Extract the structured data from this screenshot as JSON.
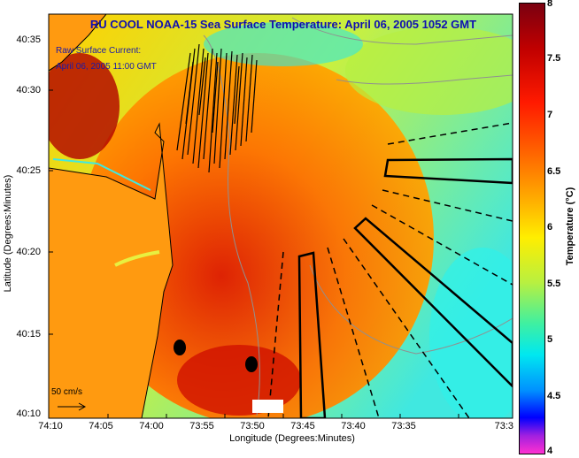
{
  "title": "RU COOL  NOAA-15  Sea Surface Temperature:  April 06, 2005 1052 GMT",
  "current_label": {
    "line1": "Raw Surface Current:",
    "line2": "April 06, 2005 11:00 GMT"
  },
  "scale_label": "50 cm/s",
  "axes": {
    "x_title": "Longitude (Degrees:Minutes)",
    "y_title": "Latitude (Degrees:Minutes)",
    "x_ticks": [
      "74:10",
      "74:05",
      "74:00",
      "73:55",
      "73:50",
      "73:45",
      "73:40",
      "73:35",
      "73:3"
    ],
    "y_ticks": [
      "40:35",
      "40:30",
      "40:25",
      "40:20",
      "40:15",
      "40:10"
    ]
  },
  "colorbar": {
    "title": "Temperature (°C)",
    "ticks": [
      "8",
      "7.5",
      "7",
      "6.5",
      "6",
      "5.5",
      "5",
      "4.5",
      "4"
    ],
    "range": [
      4,
      8
    ]
  },
  "colors": {
    "title": "#1010b0",
    "land": "#ff9a10",
    "warm": "#e02000",
    "cool": "#40e8d0"
  }
}
